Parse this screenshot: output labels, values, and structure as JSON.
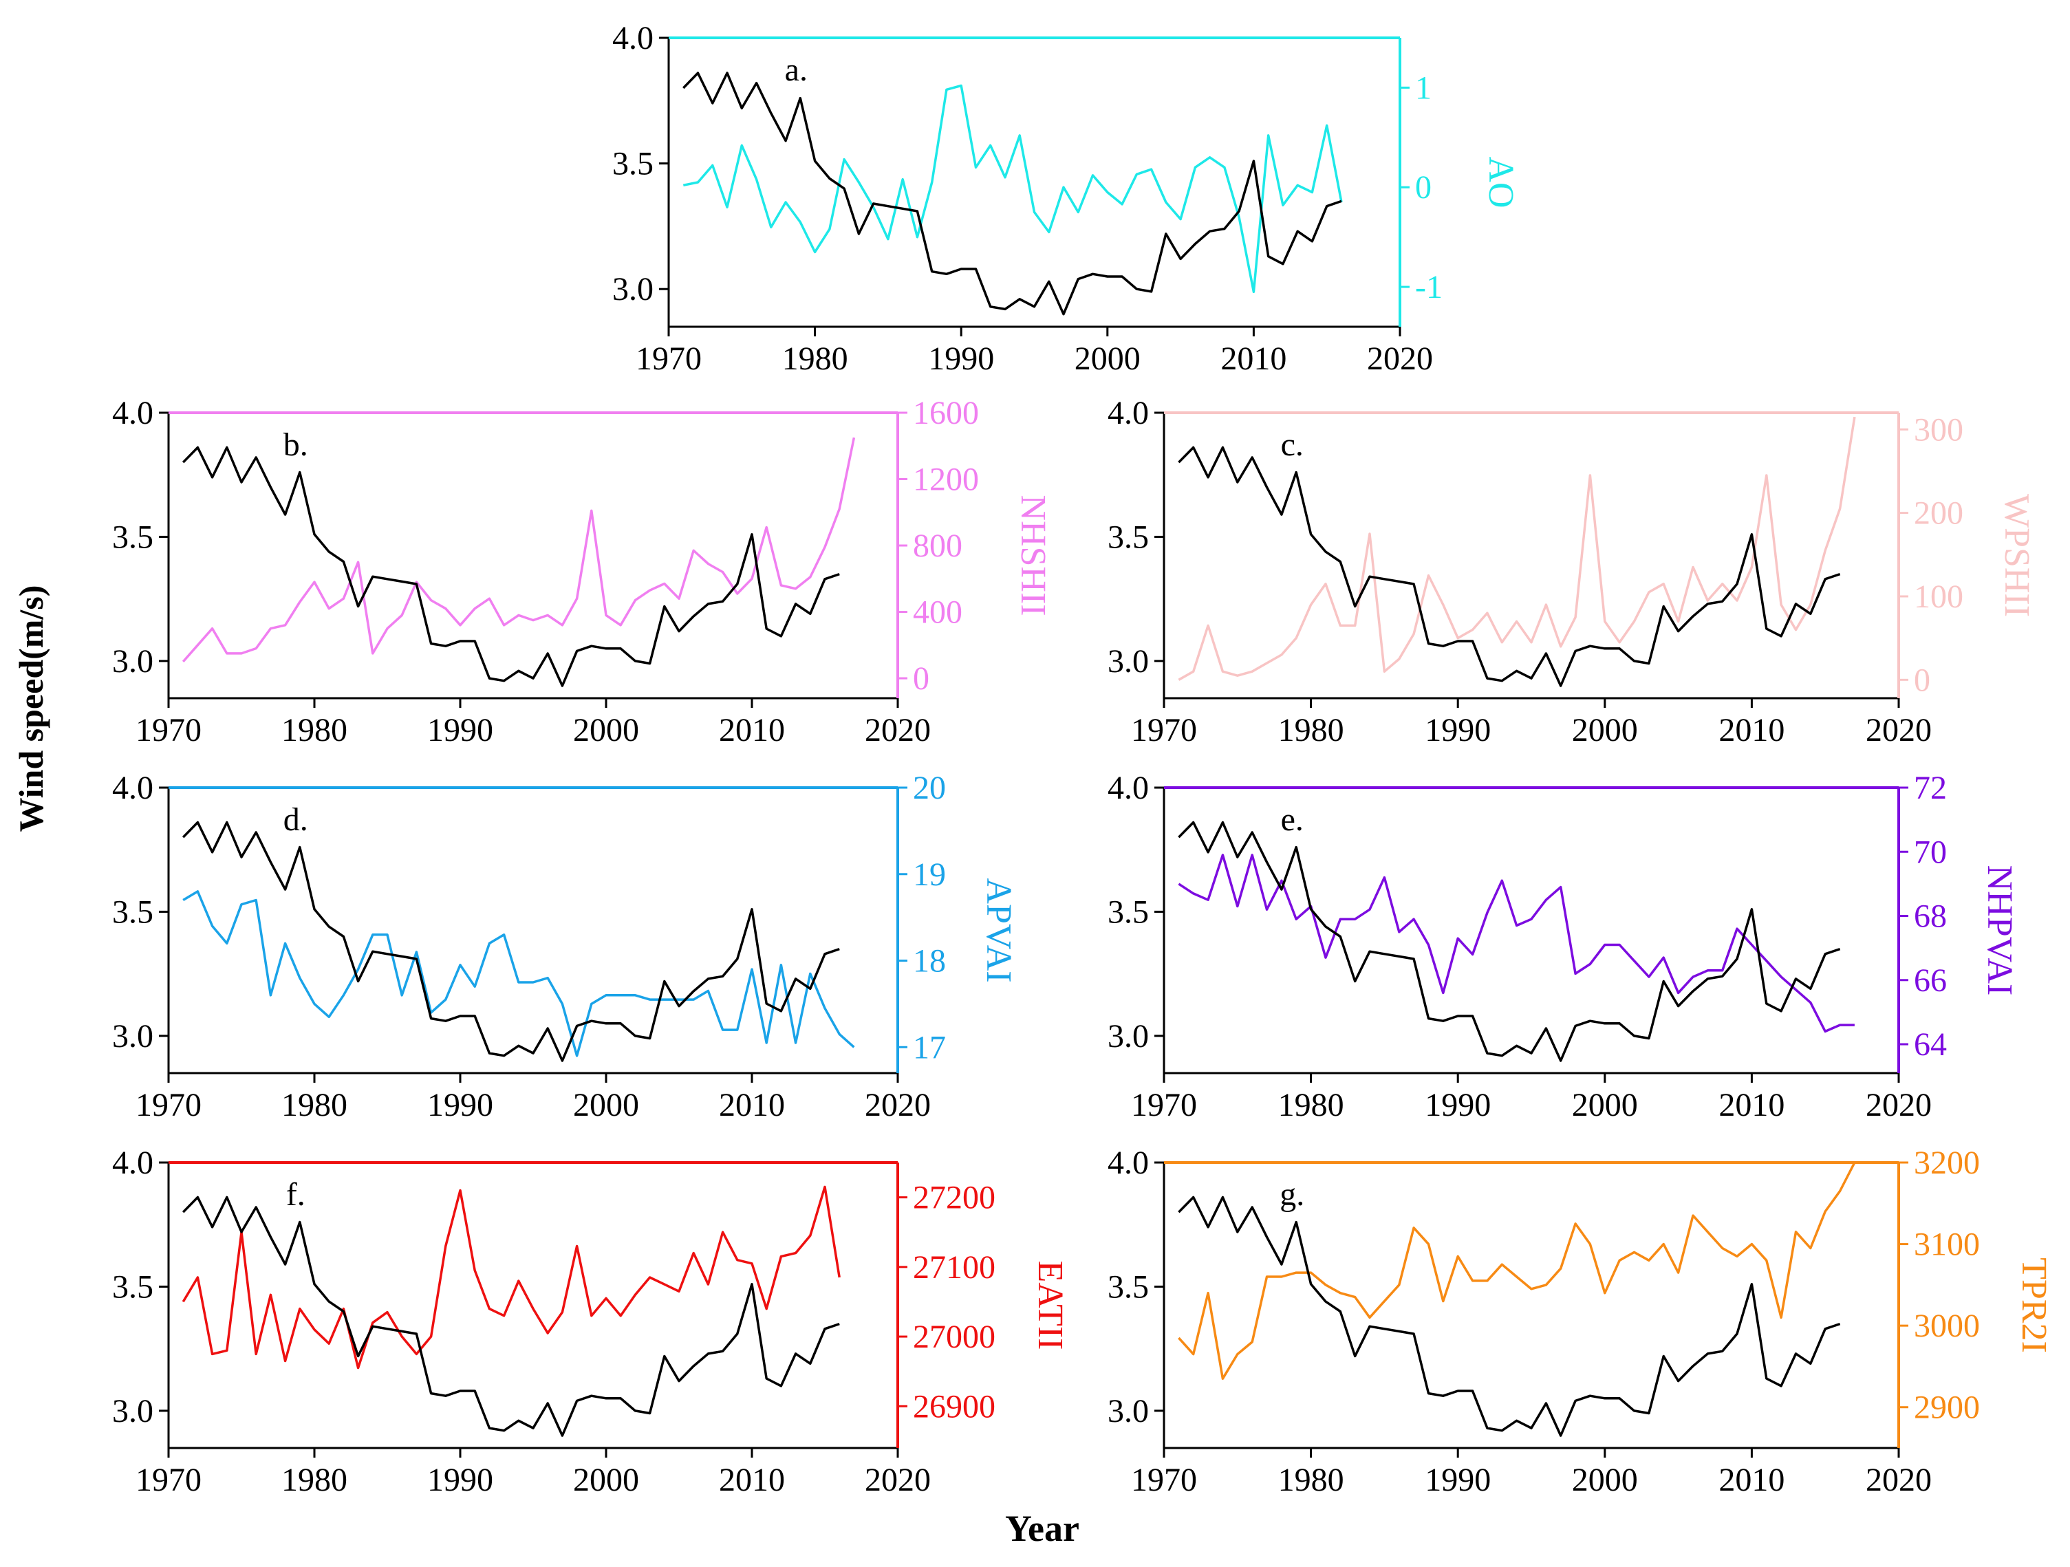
{
  "figure": {
    "ylabel": "Wind speed(m/s)",
    "xlabel": "Year",
    "x_ticks": [
      1970,
      1980,
      1990,
      2000,
      2010,
      2020
    ],
    "wind_ticks": [
      3.0,
      3.5,
      4.0
    ]
  },
  "chart_data": [
    {
      "id": "a",
      "type": "line",
      "panel_label": "a.",
      "x_range": [
        1970,
        2020
      ],
      "ylim_left": [
        2.85,
        4.0
      ],
      "right_axis_label": "AO",
      "right_color": "#1ee8e8",
      "ylim_right": [
        -1.4,
        1.5
      ],
      "right_ticks": [
        -1,
        0,
        1
      ],
      "series_right": [
        0.02,
        0.05,
        0.22,
        -0.2,
        0.42,
        0.08,
        -0.4,
        -0.15,
        -0.35,
        -0.65,
        -0.42,
        0.28,
        0.05,
        -0.2,
        -0.52,
        0.08,
        -0.5,
        0.05,
        0.98,
        1.02,
        0.2,
        0.42,
        0.1,
        0.52,
        -0.25,
        -0.45,
        0.0,
        -0.25,
        0.12,
        -0.05,
        -0.17,
        0.13,
        0.18,
        -0.15,
        -0.32,
        0.2,
        0.3,
        0.2,
        -0.3,
        -1.05,
        0.52,
        -0.18,
        0.02,
        -0.05,
        0.62,
        -0.15
      ]
    },
    {
      "id": "b",
      "type": "line",
      "panel_label": "b.",
      "x_range": [
        1970,
        2020
      ],
      "ylim_left": [
        2.85,
        4.0
      ],
      "right_axis_label": "NHSHII",
      "right_color": "#f07ff0",
      "ylim_right": [
        -120,
        1600
      ],
      "right_ticks": [
        0,
        400,
        800,
        1200,
        1600
      ],
      "series_right": [
        100,
        200,
        300,
        150,
        150,
        180,
        300,
        320,
        460,
        580,
        420,
        480,
        700,
        150,
        300,
        380,
        580,
        470,
        420,
        320,
        420,
        480,
        320,
        380,
        350,
        380,
        320,
        480,
        1010,
        380,
        320,
        470,
        530,
        570,
        480,
        770,
        690,
        640,
        510,
        600,
        910,
        560,
        540,
        610,
        790,
        1020,
        1450
      ]
    },
    {
      "id": "c",
      "type": "line",
      "panel_label": "c.",
      "x_range": [
        1970,
        2020
      ],
      "ylim_left": [
        2.85,
        4.0
      ],
      "right_axis_label": "WPSHII",
      "right_color": "#f8c4c4",
      "ylim_right": [
        -22,
        320
      ],
      "right_ticks": [
        0,
        100,
        200,
        300
      ],
      "series_right": [
        0,
        10,
        65,
        10,
        5,
        10,
        20,
        30,
        50,
        90,
        115,
        65,
        65,
        175,
        10,
        25,
        55,
        125,
        90,
        50,
        60,
        80,
        45,
        70,
        45,
        90,
        40,
        75,
        245,
        70,
        45,
        70,
        105,
        115,
        70,
        135,
        95,
        115,
        95,
        135,
        245,
        90,
        60,
        90,
        155,
        205,
        315
      ]
    },
    {
      "id": "d",
      "type": "line",
      "panel_label": "d.",
      "x_range": [
        1970,
        2020
      ],
      "ylim_left": [
        2.85,
        4.0
      ],
      "right_axis_label": "APVAI",
      "right_color": "#1aa3e8",
      "ylim_right": [
        16.7,
        20
      ],
      "right_ticks": [
        17,
        18,
        19,
        20
      ],
      "series_right": [
        18.7,
        18.8,
        18.4,
        18.2,
        18.65,
        18.7,
        17.6,
        18.2,
        17.8,
        17.5,
        17.35,
        17.6,
        17.9,
        18.3,
        18.3,
        17.6,
        18.1,
        17.4,
        17.55,
        17.95,
        17.7,
        18.2,
        18.3,
        17.75,
        17.75,
        17.8,
        17.5,
        16.9,
        17.5,
        17.6,
        17.6,
        17.6,
        17.55,
        17.55,
        17.55,
        17.55,
        17.65,
        17.2,
        17.2,
        17.9,
        17.05,
        17.95,
        17.05,
        17.85,
        17.45,
        17.15,
        17.0
      ]
    },
    {
      "id": "e",
      "type": "line",
      "panel_label": "e.",
      "x_range": [
        1970,
        2020
      ],
      "ylim_left": [
        2.85,
        4.0
      ],
      "right_axis_label": "NHPVAI",
      "right_color": "#7c0ce0",
      "ylim_right": [
        63.1,
        72
      ],
      "right_ticks": [
        64,
        66,
        68,
        70,
        72
      ],
      "series_right": [
        69,
        68.7,
        68.5,
        69.9,
        68.3,
        69.9,
        68.2,
        69.1,
        67.9,
        68.3,
        66.7,
        67.9,
        67.9,
        68.2,
        69.2,
        67.5,
        67.9,
        67.1,
        65.6,
        67.3,
        66.8,
        68.1,
        69.1,
        67.7,
        67.9,
        68.5,
        68.9,
        66.2,
        66.5,
        67.1,
        67.1,
        66.6,
        66.1,
        66.7,
        65.6,
        66.1,
        66.3,
        66.3,
        67.6,
        67.1,
        66.6,
        66.1,
        65.7,
        65.3,
        64.4,
        64.6,
        64.6
      ]
    },
    {
      "id": "f",
      "type": "line",
      "panel_label": "f.",
      "x_range": [
        1970,
        2020
      ],
      "ylim_left": [
        2.85,
        4.0
      ],
      "right_axis_label": "EATII",
      "right_color": "#ee1010",
      "ylim_right": [
        26840,
        27250
      ],
      "right_ticks": [
        26900,
        27000,
        27100,
        27200
      ],
      "series_right": [
        27050,
        27085,
        26975,
        26980,
        27150,
        26975,
        27060,
        26965,
        27040,
        27010,
        26990,
        27040,
        26955,
        27020,
        27035,
        27000,
        26975,
        27000,
        27130,
        27210,
        27095,
        27040,
        27030,
        27080,
        27040,
        27005,
        27035,
        27130,
        27030,
        27055,
        27030,
        27060,
        27085,
        27075,
        27065,
        27120,
        27075,
        27150,
        27110,
        27105,
        27040,
        27115,
        27120,
        27145,
        27215,
        27085
      ]
    },
    {
      "id": "g",
      "type": "line",
      "panel_label": "g.",
      "x_range": [
        1970,
        2020
      ],
      "ylim_left": [
        2.85,
        4.0
      ],
      "right_axis_label": "TPR2I",
      "right_color": "#f78a14",
      "ylim_right": [
        2850,
        3200
      ],
      "right_ticks": [
        2900,
        3000,
        3100,
        3200
      ],
      "series_right": [
        2985,
        2965,
        3040,
        2935,
        2965,
        2980,
        3060,
        3060,
        3065,
        3065,
        3050,
        3040,
        3035,
        3010,
        3030,
        3050,
        3120,
        3100,
        3030,
        3085,
        3055,
        3055,
        3075,
        3060,
        3045,
        3050,
        3070,
        3125,
        3100,
        3040,
        3080,
        3090,
        3080,
        3100,
        3065,
        3135,
        3115,
        3095,
        3085,
        3100,
        3080,
        3010,
        3115,
        3095,
        3140,
        3165,
        3200
      ]
    }
  ],
  "wind_speed_series": {
    "x_start": 1971,
    "values": [
      3.8,
      3.86,
      3.74,
      3.86,
      3.72,
      3.82,
      3.7,
      3.59,
      3.76,
      3.51,
      3.44,
      3.4,
      3.22,
      3.34,
      3.33,
      3.32,
      3.31,
      3.07,
      3.06,
      3.08,
      3.08,
      2.93,
      2.92,
      2.96,
      2.93,
      3.03,
      2.9,
      3.04,
      3.06,
      3.05,
      3.05,
      3.0,
      2.99,
      3.22,
      3.12,
      3.18,
      3.23,
      3.24,
      3.31,
      3.51,
      3.13,
      3.1,
      3.23,
      3.19,
      3.33,
      3.35
    ]
  }
}
